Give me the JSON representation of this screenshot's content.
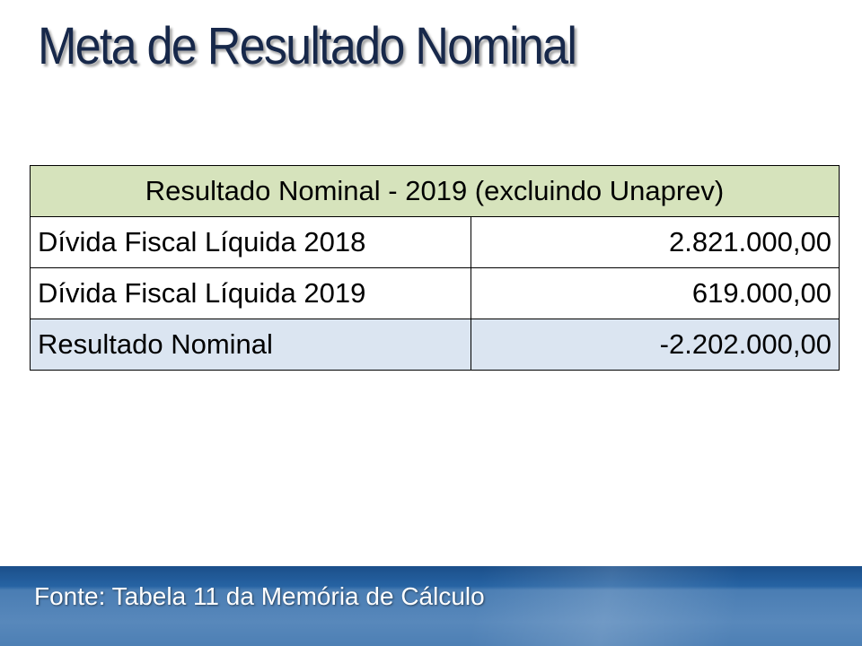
{
  "slide": {
    "title": "Meta de Resultado Nominal",
    "table": {
      "header": "Resultado Nominal - 2019 (excluindo Unaprev)",
      "rows": [
        {
          "label": "Dívida Fiscal Líquida 2018",
          "value": "2.821.000,00"
        },
        {
          "label": "Dívida Fiscal Líquida 2019",
          "value": "619.000,00"
        },
        {
          "label": "Resultado Nominal",
          "value": "-2.202.000,00"
        }
      ]
    },
    "footer": {
      "source": "Fonte: Tabela 11 da Memória de Cálculo"
    },
    "colors": {
      "title": "#17284a",
      "header_bg": "#d6e3bc",
      "highlight_row_bg": "#dbe5f1",
      "footer_band": "#2663a3"
    }
  }
}
